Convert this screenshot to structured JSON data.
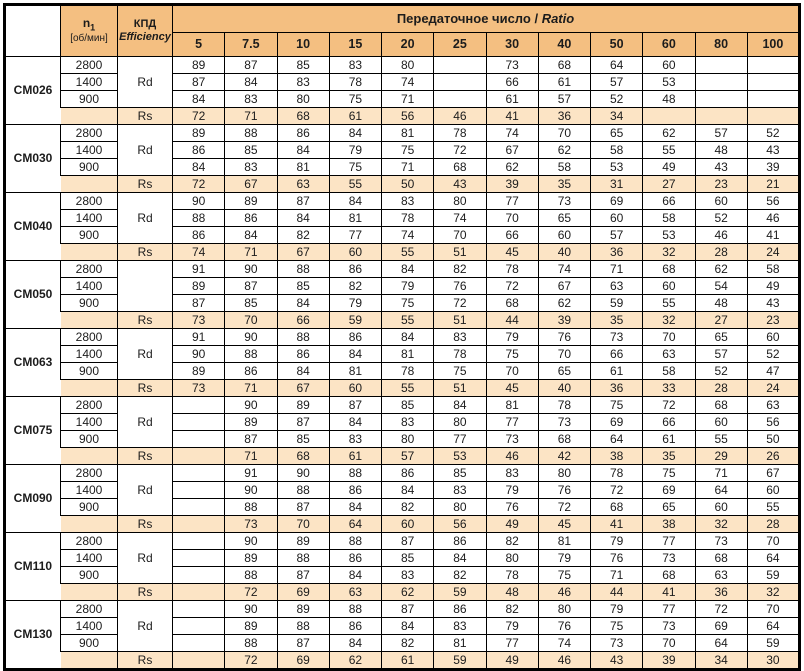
{
  "colors": {
    "header_orange": "#f4bf81",
    "light_orange": "#fce4c5",
    "border": "#000000",
    "text": "#1c1c1c"
  },
  "header": {
    "n1_base": "n",
    "n1_sub": "1",
    "n1_unit": "[об/мин]",
    "kpd_ru": "КПД",
    "kpd_en": "Efficiency",
    "ratio_title_ru": "Передаточное число /",
    "ratio_title_en": "Ratio",
    "ratios": [
      "5",
      "7.5",
      "10",
      "15",
      "20",
      "25",
      "30",
      "40",
      "50",
      "60",
      "80",
      "100"
    ]
  },
  "groups": [
    {
      "model": "CM026",
      "speeds": [
        "2800",
        "1400",
        "900"
      ],
      "rd_label": "Rd",
      "rs_label": "Rs",
      "rd": [
        [
          "89",
          "87",
          "85",
          "83",
          "80",
          "",
          "73",
          "68",
          "64",
          "60",
          "",
          ""
        ],
        [
          "87",
          "84",
          "83",
          "78",
          "74",
          "",
          "66",
          "61",
          "57",
          "53",
          "",
          ""
        ],
        [
          "84",
          "83",
          "80",
          "75",
          "71",
          "",
          "61",
          "57",
          "52",
          "48",
          "",
          ""
        ]
      ],
      "rs": [
        "72",
        "71",
        "68",
        "61",
        "56",
        "46",
        "41",
        "36",
        "34",
        "",
        "",
        ""
      ]
    },
    {
      "model": "CM030",
      "speeds": [
        "2800",
        "1400",
        "900"
      ],
      "rd_label": "Rd",
      "rs_label": "Rs",
      "rd": [
        [
          "89",
          "88",
          "86",
          "84",
          "81",
          "78",
          "74",
          "70",
          "65",
          "62",
          "57",
          "52"
        ],
        [
          "86",
          "85",
          "84",
          "79",
          "75",
          "72",
          "67",
          "62",
          "58",
          "55",
          "48",
          "43"
        ],
        [
          "84",
          "83",
          "81",
          "75",
          "71",
          "68",
          "62",
          "58",
          "53",
          "49",
          "43",
          "39"
        ]
      ],
      "rs": [
        "72",
        "67",
        "63",
        "55",
        "50",
        "43",
        "39",
        "35",
        "31",
        "27",
        "23",
        "21"
      ]
    },
    {
      "model": "CM040",
      "speeds": [
        "2800",
        "1400",
        "900"
      ],
      "rd_label": "Rd",
      "rs_label": "Rs",
      "rd": [
        [
          "90",
          "89",
          "87",
          "84",
          "83",
          "80",
          "77",
          "73",
          "69",
          "66",
          "60",
          "56"
        ],
        [
          "88",
          "86",
          "84",
          "81",
          "78",
          "74",
          "70",
          "65",
          "60",
          "58",
          "52",
          "46"
        ],
        [
          "86",
          "84",
          "82",
          "77",
          "74",
          "70",
          "66",
          "60",
          "57",
          "53",
          "46",
          "41"
        ]
      ],
      "rs": [
        "74",
        "71",
        "67",
        "60",
        "55",
        "51",
        "45",
        "40",
        "36",
        "32",
        "28",
        "24"
      ]
    },
    {
      "model": "CM050",
      "speeds": [
        "2800",
        "1400",
        "900"
      ],
      "rd_label": "",
      "rs_label": "Rs",
      "rd": [
        [
          "91",
          "90",
          "88",
          "86",
          "84",
          "82",
          "78",
          "74",
          "71",
          "68",
          "62",
          "58"
        ],
        [
          "89",
          "87",
          "85",
          "82",
          "79",
          "76",
          "72",
          "67",
          "63",
          "60",
          "54",
          "49"
        ],
        [
          "87",
          "85",
          "84",
          "79",
          "75",
          "72",
          "68",
          "62",
          "59",
          "55",
          "48",
          "43"
        ]
      ],
      "rs": [
        "73",
        "70",
        "66",
        "59",
        "55",
        "51",
        "44",
        "39",
        "35",
        "32",
        "27",
        "23"
      ]
    },
    {
      "model": "CM063",
      "speeds": [
        "2800",
        "1400",
        "900"
      ],
      "rd_label": "Rd",
      "rs_label": "Rs",
      "rd": [
        [
          "91",
          "90",
          "88",
          "86",
          "84",
          "83",
          "79",
          "76",
          "73",
          "70",
          "65",
          "60"
        ],
        [
          "90",
          "88",
          "86",
          "84",
          "81",
          "78",
          "75",
          "70",
          "66",
          "63",
          "57",
          "52"
        ],
        [
          "89",
          "86",
          "84",
          "81",
          "78",
          "75",
          "70",
          "65",
          "61",
          "58",
          "52",
          "47"
        ]
      ],
      "rs": [
        "73",
        "71",
        "67",
        "60",
        "55",
        "51",
        "45",
        "40",
        "36",
        "33",
        "28",
        "24"
      ]
    },
    {
      "model": "CM075",
      "speeds": [
        "2800",
        "1400",
        "900"
      ],
      "rd_label": "Rd",
      "rs_label": "Rs",
      "rd": [
        [
          "",
          "90",
          "89",
          "87",
          "85",
          "84",
          "81",
          "78",
          "75",
          "72",
          "68",
          "63"
        ],
        [
          "",
          "89",
          "87",
          "84",
          "83",
          "80",
          "77",
          "73",
          "69",
          "66",
          "60",
          "56"
        ],
        [
          "",
          "87",
          "85",
          "83",
          "80",
          "77",
          "73",
          "68",
          "64",
          "61",
          "55",
          "50"
        ]
      ],
      "rs": [
        "",
        "71",
        "68",
        "61",
        "57",
        "53",
        "46",
        "42",
        "38",
        "35",
        "29",
        "26"
      ]
    },
    {
      "model": "CM090",
      "speeds": [
        "2800",
        "1400",
        "900"
      ],
      "rd_label": "Rd",
      "rs_label": "Rs",
      "rd": [
        [
          "",
          "91",
          "90",
          "88",
          "86",
          "85",
          "83",
          "80",
          "78",
          "75",
          "71",
          "67"
        ],
        [
          "",
          "90",
          "88",
          "86",
          "84",
          "83",
          "79",
          "76",
          "72",
          "69",
          "64",
          "60"
        ],
        [
          "",
          "88",
          "87",
          "84",
          "82",
          "80",
          "76",
          "72",
          "68",
          "65",
          "60",
          "55"
        ]
      ],
      "rs": [
        "",
        "73",
        "70",
        "64",
        "60",
        "56",
        "49",
        "45",
        "41",
        "38",
        "32",
        "28"
      ]
    },
    {
      "model": "CM110",
      "speeds": [
        "2800",
        "1400",
        "900"
      ],
      "rd_label": "Rd",
      "rs_label": "Rs",
      "rd": [
        [
          "",
          "90",
          "89",
          "88",
          "87",
          "86",
          "82",
          "81",
          "79",
          "77",
          "73",
          "70"
        ],
        [
          "",
          "89",
          "88",
          "86",
          "85",
          "84",
          "80",
          "79",
          "76",
          "73",
          "68",
          "64"
        ],
        [
          "",
          "88",
          "87",
          "84",
          "83",
          "82",
          "78",
          "75",
          "71",
          "68",
          "63",
          "59"
        ]
      ],
      "rs": [
        "",
        "72",
        "69",
        "63",
        "62",
        "59",
        "48",
        "46",
        "44",
        "41",
        "36",
        "32"
      ]
    },
    {
      "model": "CM130",
      "speeds": [
        "2800",
        "1400",
        "900"
      ],
      "rd_label": "Rd",
      "rs_label": "Rs",
      "rd": [
        [
          "",
          "90",
          "89",
          "88",
          "87",
          "86",
          "82",
          "80",
          "79",
          "77",
          "72",
          "70"
        ],
        [
          "",
          "89",
          "88",
          "86",
          "84",
          "83",
          "79",
          "76",
          "75",
          "73",
          "69",
          "64"
        ],
        [
          "",
          "88",
          "87",
          "84",
          "82",
          "81",
          "77",
          "74",
          "73",
          "70",
          "64",
          "59"
        ]
      ],
      "rs": [
        "",
        "72",
        "69",
        "62",
        "61",
        "59",
        "49",
        "46",
        "43",
        "39",
        "34",
        "30"
      ]
    }
  ]
}
